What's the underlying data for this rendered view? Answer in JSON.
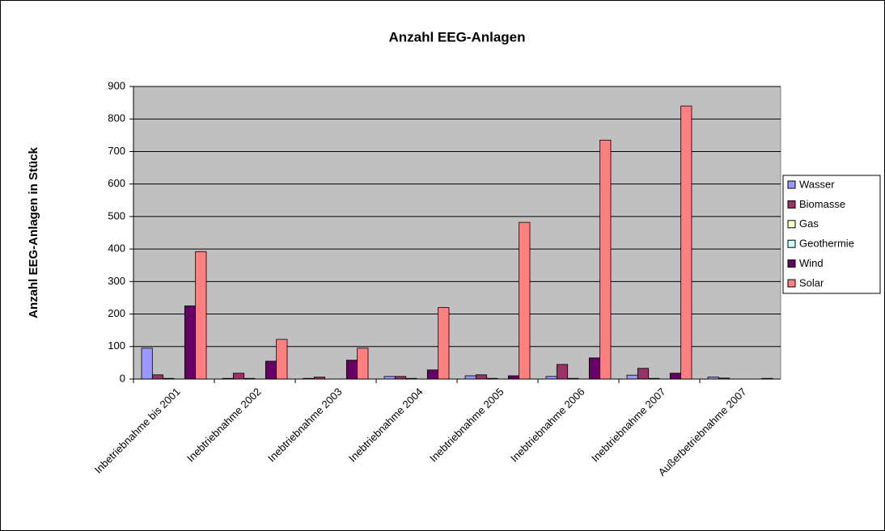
{
  "chart_data": {
    "type": "bar",
    "title": "Anzahl EEG-Anlagen",
    "y_label": "Anzahl EEG-Anlagen in Stück",
    "categories": [
      "Inbetriebnahme bis 2001",
      "Inebtriebnahme 2002",
      "Inebtriebnahme 2003",
      "Inebtriebnahme 2004",
      "Inebtriebnahme 2005",
      "Inebtriebnahme 2006",
      "Inebtriebnahme 2007",
      "Außerbetriebnahme 2007"
    ],
    "series": [
      {
        "name": "Wasser",
        "color": "#9999ff",
        "values": [
          95,
          2,
          2,
          8,
          10,
          8,
          12,
          6
        ]
      },
      {
        "name": "Biomasse",
        "color": "#993366",
        "values": [
          13,
          18,
          6,
          8,
          13,
          45,
          33,
          3
        ]
      },
      {
        "name": "Gas",
        "color": "#ffffcc",
        "values": [
          2,
          2,
          0,
          2,
          2,
          2,
          2,
          0
        ]
      },
      {
        "name": "Geothermie",
        "color": "#ccffff",
        "values": [
          0,
          0,
          0,
          0,
          0,
          0,
          0,
          0
        ]
      },
      {
        "name": "Wind",
        "color": "#660066",
        "values": [
          225,
          55,
          58,
          28,
          10,
          65,
          18,
          0
        ]
      },
      {
        "name": "Solar",
        "color": "#ff8080",
        "values": [
          392,
          122,
          95,
          220,
          482,
          735,
          840,
          2
        ]
      }
    ],
    "ylim": [
      0,
      900
    ],
    "yticks": [
      0,
      100,
      200,
      300,
      400,
      500,
      600,
      700,
      800,
      900
    ],
    "grid": true,
    "legend": "right"
  }
}
